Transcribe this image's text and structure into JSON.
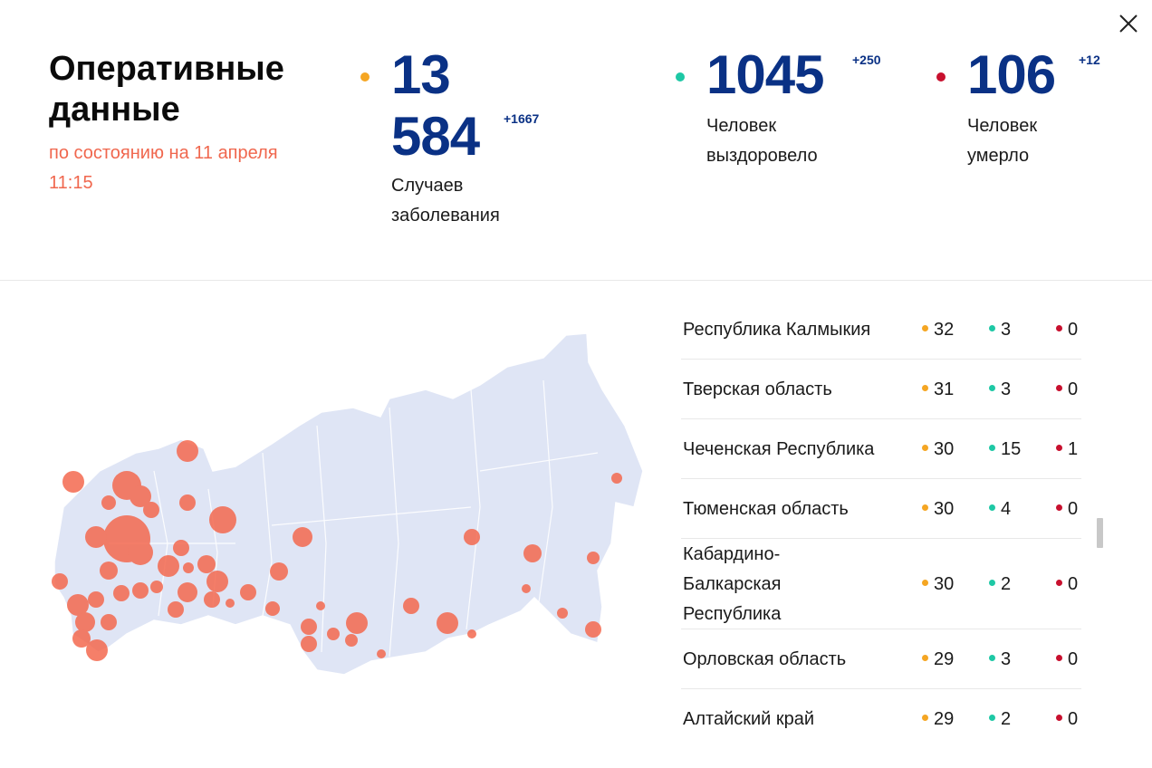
{
  "header": {
    "title": "Оперативные данные",
    "date_line1": "по состоянию на 11 апреля",
    "date_line2": "11:15",
    "close_icon": "close-icon"
  },
  "stats": {
    "cases": {
      "value_line1": "13",
      "value_line2": "584",
      "delta": "+1667",
      "label_line1": "Случаев",
      "label_line2": "заболевания",
      "color": "#f5a623"
    },
    "recovered": {
      "value": "1045",
      "delta": "+250",
      "label_line1": "Человек",
      "label_line2": "выздоровело",
      "color": "#1ec8a5"
    },
    "deaths": {
      "value": "106",
      "delta": "+12",
      "label_line1": "Человек",
      "label_line2": "умерло",
      "color": "#c8102e"
    }
  },
  "colors": {
    "cases": "#f5a623",
    "recovered": "#1ec8a5",
    "deaths": "#c8102e",
    "map_land": "#dfe5f5",
    "map_bubble": "#f4694f",
    "accent_blue": "#0a3185"
  },
  "regions": [
    {
      "name": "Республика Калмыкия",
      "cases": "32",
      "recovered": "3",
      "deaths": "0"
    },
    {
      "name": "Тверская область",
      "cases": "31",
      "recovered": "3",
      "deaths": "0"
    },
    {
      "name": "Чеченская Республика",
      "cases": "30",
      "recovered": "15",
      "deaths": "1"
    },
    {
      "name": "Тюменская область",
      "cases": "30",
      "recovered": "4",
      "deaths": "0"
    },
    {
      "name": "Кабардино-Балкарская Республика",
      "name_lines": [
        "Кабардино-",
        "Балкарская",
        "Республика"
      ],
      "cases": "30",
      "recovered": "2",
      "deaths": "0"
    },
    {
      "name": "Орловская область",
      "cases": "29",
      "recovered": "3",
      "deaths": "0"
    },
    {
      "name": "Алтайский край",
      "cases": "29",
      "recovered": "2",
      "deaths": "0"
    }
  ]
}
